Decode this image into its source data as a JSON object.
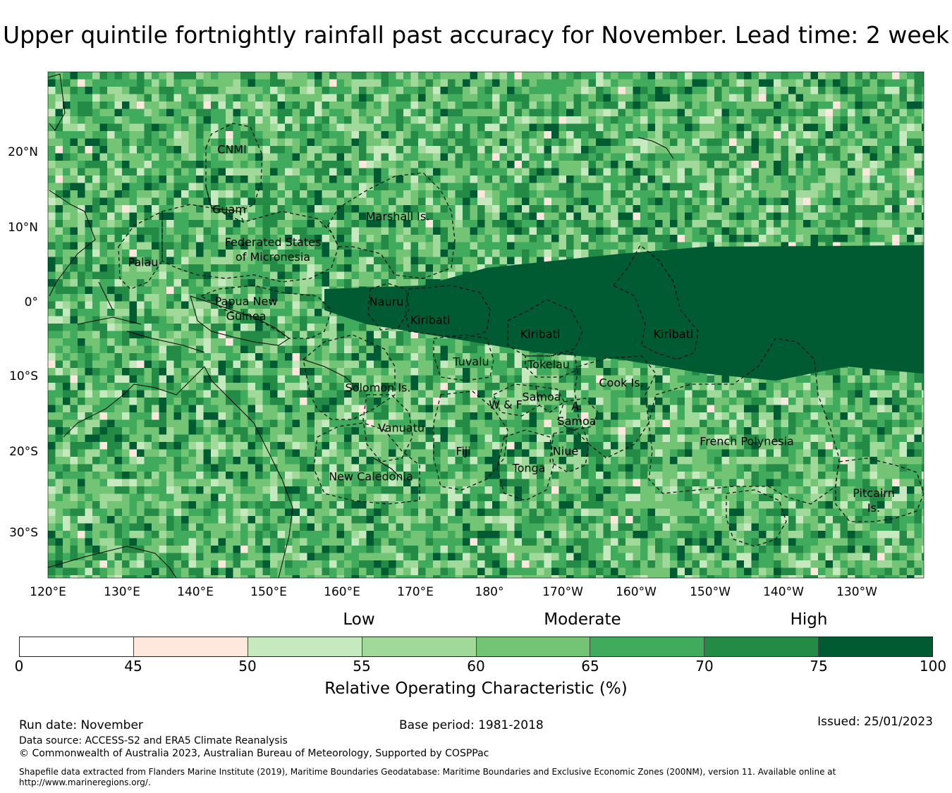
{
  "title": "Upper quintile fortnightly rainfall past accuracy for November. Lead time: 2 week",
  "map": {
    "longitude_labels": [
      "120°E",
      "130°E",
      "140°E",
      "150°E",
      "160°E",
      "170°E",
      "180°",
      "170°W",
      "160°W",
      "150°W",
      "140°W",
      "130°W"
    ],
    "latitude_labels": [
      "20°N",
      "10°N",
      "0°",
      "10°S",
      "20°S",
      "30°S"
    ],
    "regions": [
      {
        "name": "CNMI"
      },
      {
        "name": "Guam"
      },
      {
        "name": "Marshall Is."
      },
      {
        "name": "Federated States\nof Micronesia"
      },
      {
        "name": "Palau"
      },
      {
        "name": "Papua New\nGuinea"
      },
      {
        "name": "Nauru"
      },
      {
        "name": "Kiribati"
      },
      {
        "name": "Kiribati"
      },
      {
        "name": "Kiribati"
      },
      {
        "name": "Tuvalu"
      },
      {
        "name": "Tokelau"
      },
      {
        "name": "Solomon Is."
      },
      {
        "name": "Cook Is."
      },
      {
        "name": "Samoa"
      },
      {
        "name": "W & F"
      },
      {
        "name": "A.\nSamoa"
      },
      {
        "name": "Vanuatu"
      },
      {
        "name": "Fiji"
      },
      {
        "name": "Niue"
      },
      {
        "name": "Tonga"
      },
      {
        "name": "New Caledonia"
      },
      {
        "name": "French Polynesia"
      },
      {
        "name": "Pitcairn\nIs."
      }
    ]
  },
  "colorbar": {
    "categories": [
      "Low",
      "Moderate",
      "High"
    ],
    "ticks": [
      "0",
      "45",
      "50",
      "55",
      "60",
      "65",
      "70",
      "75",
      "100"
    ],
    "colors": [
      "#ffffff",
      "#fee8de",
      "#c7e9c0",
      "#a1d99b",
      "#74c476",
      "#41ab5d",
      "#238b45",
      "#005a32"
    ],
    "label": "Relative Operating Characteristic (%)"
  },
  "footer": {
    "run_date": "Run date: November",
    "base_period": "Base period: 1981-2018",
    "issued": "Issued: 25/01/2023",
    "data_source": "Data source: ACCESS-S2 and ERA5 Climate Reanalysis",
    "copyright": "© Commonwealth of Australia 2023, Australian Bureau of Meteorology, Supported by COSPPac",
    "shapefile": "Shapefile data extracted from Flanders Marine Institute (2019), Maritime Boundaries Geodatabase: Maritime Boundaries and Exclusive Economic Zones (200NM), version 11. Available online at http://www.marineregions.org/."
  }
}
